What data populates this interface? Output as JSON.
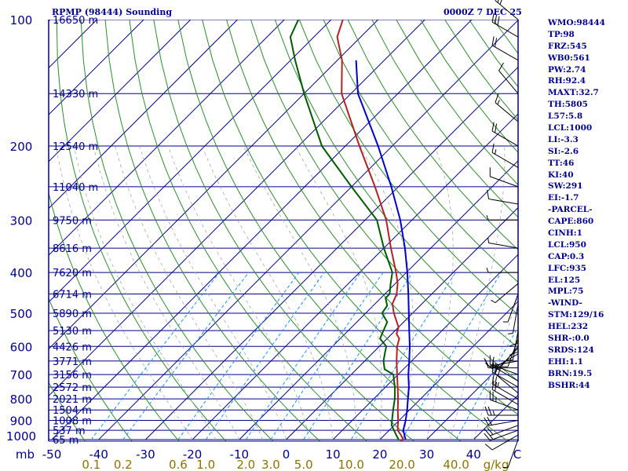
{
  "header": {
    "title": "RPMP (98444) Sounding",
    "time": "0000Z  7 DEC 25"
  },
  "indices": [
    "WMO:98444",
    "TP:98",
    "FRZ:545",
    "WB0:561",
    "PW:2.74",
    "RH:92.4",
    "MAXT:32.7",
    "TH:5805",
    "L57:5.8",
    "LCL:1000",
    "LI:-3.3",
    "SI:-2.6",
    "TT:46",
    "KI:40",
    "SW:291",
    "EI:-1.7",
    "-PARCEL-",
    "CAPE:860",
    "CINH:1",
    "LCL:950",
    "CAP:0.3",
    "LFC:935",
    "EL:125",
    "MPL:75",
    "-WIND-",
    "STM:129/16",
    "HEL:232",
    "SHR-:0.0",
    "SRDS:124",
    "EHI:1.1",
    "BRN:19.5",
    "BSHR:44"
  ],
  "colors": {
    "isobar": "#00008b",
    "isotherm": "#00008b",
    "dry_adiabat": "#2e8b2e",
    "moist_adiabat": "#a8a8a8",
    "mixing_ratio": "#1e90ff",
    "temperature": "#b22222",
    "dewpoint": "#005a00",
    "parcel": "#0000cd",
    "text": "#00008b",
    "mixing_label": "#8b7300",
    "wind_barb": "#000000"
  },
  "chart_data": {
    "type": "skew-t",
    "pressure_axis": {
      "unit": "mb",
      "range": [
        1000,
        100
      ],
      "tick_labels": [
        "1000",
        "900",
        "800",
        "700",
        "600",
        "500",
        "400",
        "300",
        "200",
        "100"
      ],
      "corner_label": "mb"
    },
    "temperature_axis": {
      "unit": "C",
      "range": [
        -50,
        50
      ],
      "tick_labels": [
        "-50",
        "-40",
        "-30",
        "-20",
        "-10",
        "0",
        "10",
        "20",
        "30",
        "40"
      ],
      "unit_label": "C"
    },
    "height_labels": [
      {
        "p": 100,
        "label": "16650 m"
      },
      {
        "p": 150,
        "label": "14330 m"
      },
      {
        "p": 200,
        "label": "12540 m"
      },
      {
        "p": 250,
        "label": "11040 m"
      },
      {
        "p": 300,
        "label": "9750 m"
      },
      {
        "p": 350,
        "label": "8616 m"
      },
      {
        "p": 400,
        "label": "7620 m"
      },
      {
        "p": 450,
        "label": "6714 m"
      },
      {
        "p": 500,
        "label": "5890 m"
      },
      {
        "p": 550,
        "label": "5130 m"
      },
      {
        "p": 600,
        "label": "4426 m"
      },
      {
        "p": 650,
        "label": "3771 m"
      },
      {
        "p": 700,
        "label": "3156 m"
      },
      {
        "p": 750,
        "label": "2572 m"
      },
      {
        "p": 800,
        "label": "2021 m"
      },
      {
        "p": 850,
        "label": "1504 m"
      },
      {
        "p": 900,
        "label": "1008 m"
      },
      {
        "p": 950,
        "label": "537 m"
      },
      {
        "p": 1000,
        "label": "65 m"
      }
    ],
    "mixing_ratio_labels": [
      {
        "w": 0.1,
        "label": "0.1"
      },
      {
        "w": 0.2,
        "label": "0.2"
      },
      {
        "w": 0.6,
        "label": "0.6"
      },
      {
        "w": 1.0,
        "label": "1.0"
      },
      {
        "w": 2.0,
        "label": "2.0"
      },
      {
        "w": 3.0,
        "label": "3.0"
      },
      {
        "w": 5.0,
        "label": "5.0"
      },
      {
        "w": 10.0,
        "label": "10.0"
      },
      {
        "w": 20.0,
        "label": "20.0"
      },
      {
        "w": 40.0,
        "label": "40.0"
      }
    ],
    "mixing_ratio_unit": "g/kg",
    "temperature_profile": [
      {
        "p": 1003,
        "t": 24.5
      },
      {
        "p": 1000,
        "t": 25.0
      },
      {
        "p": 975,
        "t": 23.5
      },
      {
        "p": 950,
        "t": 21.8
      },
      {
        "p": 925,
        "t": 20.8
      },
      {
        "p": 900,
        "t": 19.8
      },
      {
        "p": 850,
        "t": 17.5
      },
      {
        "p": 800,
        "t": 15.2
      },
      {
        "p": 750,
        "t": 12.6
      },
      {
        "p": 700,
        "t": 9.8
      },
      {
        "p": 650,
        "t": 6.8
      },
      {
        "p": 600,
        "t": 3.8
      },
      {
        "p": 575,
        "t": 2.6
      },
      {
        "p": 560,
        "t": 1.0
      },
      {
        "p": 540,
        "t": 0.0
      },
      {
        "p": 500,
        "t": -4.0
      },
      {
        "p": 475,
        "t": -6.3
      },
      {
        "p": 460,
        "t": -7.0
      },
      {
        "p": 450,
        "t": -7.5
      },
      {
        "p": 425,
        "t": -9.5
      },
      {
        "p": 400,
        "t": -12.2
      },
      {
        "p": 350,
        "t": -18.5
      },
      {
        "p": 300,
        "t": -25.5
      },
      {
        "p": 250,
        "t": -35.0
      },
      {
        "p": 200,
        "t": -47.0
      },
      {
        "p": 150,
        "t": -62.0
      },
      {
        "p": 125,
        "t": -69.0
      },
      {
        "p": 110,
        "t": -75.0
      },
      {
        "p": 100,
        "t": -77.5
      }
    ],
    "dewpoint_profile": [
      {
        "p": 1003,
        "t": 24.0
      },
      {
        "p": 1000,
        "t": 24.0
      },
      {
        "p": 975,
        "t": 22.5
      },
      {
        "p": 950,
        "t": 21.0
      },
      {
        "p": 925,
        "t": 19.5
      },
      {
        "p": 900,
        "t": 18.5
      },
      {
        "p": 850,
        "t": 16.5
      },
      {
        "p": 800,
        "t": 14.5
      },
      {
        "p": 750,
        "t": 12.0
      },
      {
        "p": 700,
        "t": 9.0
      },
      {
        "p": 680,
        "t": 6.0
      },
      {
        "p": 650,
        "t": 4.0
      },
      {
        "p": 620,
        "t": 2.5
      },
      {
        "p": 600,
        "t": 1.5
      },
      {
        "p": 575,
        "t": -1.5
      },
      {
        "p": 550,
        "t": -2.5
      },
      {
        "p": 525,
        "t": -3.5
      },
      {
        "p": 500,
        "t": -6.5
      },
      {
        "p": 480,
        "t": -7.0
      },
      {
        "p": 460,
        "t": -9.0
      },
      {
        "p": 450,
        "t": -9.0
      },
      {
        "p": 425,
        "t": -11.0
      },
      {
        "p": 400,
        "t": -13.0
      },
      {
        "p": 350,
        "t": -20.0
      },
      {
        "p": 300,
        "t": -27.5
      },
      {
        "p": 250,
        "t": -40.0
      },
      {
        "p": 200,
        "t": -55.0
      },
      {
        "p": 150,
        "t": -70.0
      },
      {
        "p": 125,
        "t": -79.0
      },
      {
        "p": 110,
        "t": -85.0
      },
      {
        "p": 100,
        "t": -87.0
      }
    ],
    "parcel_profile": [
      {
        "p": 1000,
        "t": 25.5
      },
      {
        "p": 950,
        "t": 23.0
      },
      {
        "p": 900,
        "t": 21.4
      },
      {
        "p": 850,
        "t": 19.5
      },
      {
        "p": 800,
        "t": 17.3
      },
      {
        "p": 750,
        "t": 15.0
      },
      {
        "p": 700,
        "t": 12.2
      },
      {
        "p": 650,
        "t": 9.5
      },
      {
        "p": 600,
        "t": 6.5
      },
      {
        "p": 550,
        "t": 3.0
      },
      {
        "p": 500,
        "t": -0.8
      },
      {
        "p": 450,
        "t": -5.0
      },
      {
        "p": 400,
        "t": -9.8
      },
      {
        "p": 350,
        "t": -15.5
      },
      {
        "p": 300,
        "t": -22.5
      },
      {
        "p": 250,
        "t": -31.5
      },
      {
        "p": 200,
        "t": -43.0
      },
      {
        "p": 150,
        "t": -58.5
      },
      {
        "p": 125,
        "t": -66.0
      }
    ],
    "wind_profile": [
      {
        "p": 1000,
        "dir": 200,
        "spd": 5
      },
      {
        "p": 975,
        "dir": 240,
        "spd": 10
      },
      {
        "p": 950,
        "dir": 250,
        "spd": 15
      },
      {
        "p": 925,
        "dir": 250,
        "spd": 20
      },
      {
        "p": 900,
        "dir": 260,
        "spd": 20
      },
      {
        "p": 875,
        "dir": 270,
        "spd": 25
      },
      {
        "p": 850,
        "dir": 290,
        "spd": 25
      },
      {
        "p": 825,
        "dir": 300,
        "spd": 20
      },
      {
        "p": 800,
        "dir": 300,
        "spd": 25
      },
      {
        "p": 775,
        "dir": 310,
        "spd": 20
      },
      {
        "p": 750,
        "dir": 300,
        "spd": 20
      },
      {
        "p": 725,
        "dir": 300,
        "spd": 15
      },
      {
        "p": 700,
        "dir": 290,
        "spd": 15
      },
      {
        "p": 675,
        "dir": 270,
        "spd": 10
      },
      {
        "p": 650,
        "dir": 260,
        "spd": 10
      },
      {
        "p": 625,
        "dir": 240,
        "spd": 10
      },
      {
        "p": 600,
        "dir": 220,
        "spd": 10
      },
      {
        "p": 575,
        "dir": 200,
        "spd": 10
      },
      {
        "p": 550,
        "dir": 190,
        "spd": 10
      },
      {
        "p": 525,
        "dir": 180,
        "spd": 10
      },
      {
        "p": 500,
        "dir": 180,
        "spd": 10
      },
      {
        "p": 475,
        "dir": 190,
        "spd": 5
      },
      {
        "p": 450,
        "dir": 200,
        "spd": 5
      },
      {
        "p": 425,
        "dir": 230,
        "spd": 5
      },
      {
        "p": 400,
        "dir": 270,
        "spd": 5
      },
      {
        "p": 350,
        "dir": 280,
        "spd": 5
      },
      {
        "p": 300,
        "dir": 270,
        "spd": 5
      },
      {
        "p": 275,
        "dir": 280,
        "spd": 10
      },
      {
        "p": 250,
        "dir": 290,
        "spd": 10
      },
      {
        "p": 225,
        "dir": 300,
        "spd": 15
      },
      {
        "p": 200,
        "dir": 300,
        "spd": 20
      },
      {
        "p": 175,
        "dir": 310,
        "spd": 15
      },
      {
        "p": 150,
        "dir": 320,
        "spd": 10
      },
      {
        "p": 125,
        "dir": 300,
        "spd": 20
      },
      {
        "p": 110,
        "dir": 300,
        "spd": 30
      },
      {
        "p": 100,
        "dir": 310,
        "spd": 30
      }
    ]
  }
}
